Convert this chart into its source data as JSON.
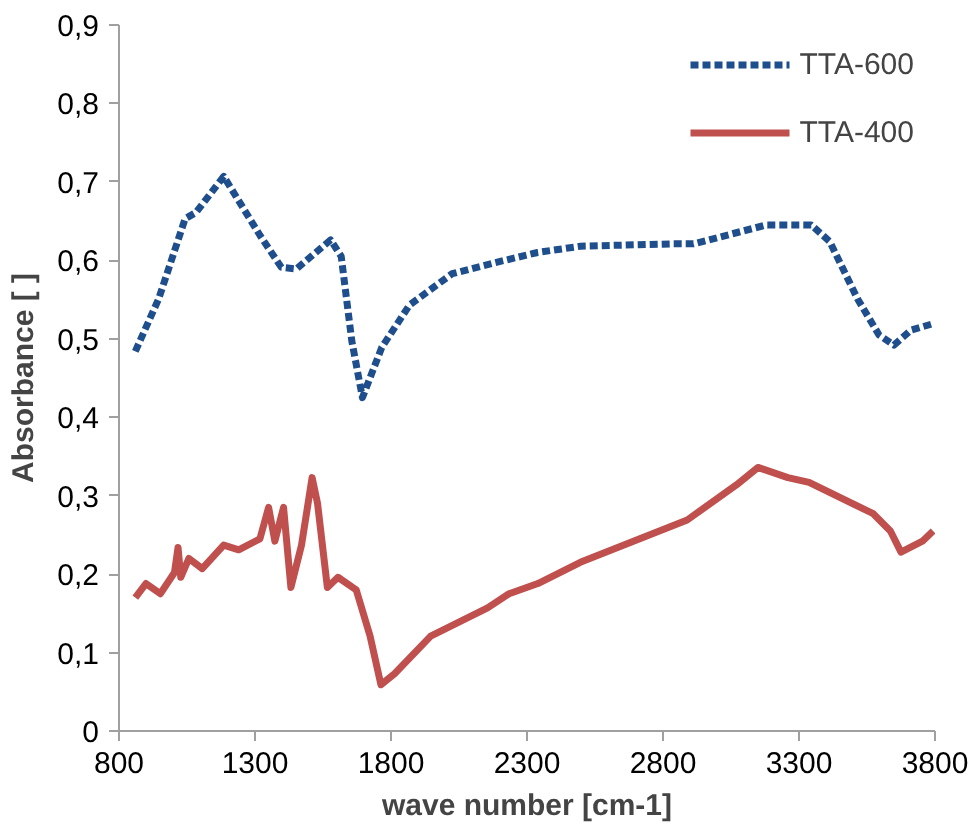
{
  "chart_data": {
    "type": "line",
    "xlabel": "wave number [cm-1]",
    "ylabel": "Absorbance [ ]",
    "xlim": [
      800,
      3800
    ],
    "xticks": [
      800,
      1300,
      1800,
      2300,
      2800,
      3300,
      3800
    ],
    "ylim": [
      0,
      0.9
    ],
    "yticks": [
      {
        "value": 0,
        "label": "0"
      },
      {
        "value": 0.1,
        "label": "0,1"
      },
      {
        "value": 0.2,
        "label": "0,2"
      },
      {
        "value": 0.3,
        "label": "0,3"
      },
      {
        "value": 0.4,
        "label": "0,4"
      },
      {
        "value": 0.5,
        "label": "0,5"
      },
      {
        "value": 0.6,
        "label": "0,6"
      },
      {
        "value": 0.7,
        "label": "0,7"
      },
      {
        "value": 0.8,
        "label": "0,8"
      },
      {
        "value": 0.9,
        "label": "0,9"
      }
    ],
    "grid": false,
    "legend": "top right",
    "marker": "none",
    "series": [
      {
        "name": "TTA-600",
        "color": "#1f4e8c",
        "line_style": "dashed",
        "x": [
          860,
          946,
          1043,
          1083,
          1185,
          1318,
          1397,
          1452,
          1578,
          1617,
          1656,
          1695,
          1766,
          1868,
          2025,
          2182,
          2339,
          2496,
          2834,
          2912,
          3179,
          3345,
          3413,
          3515,
          3594,
          3649,
          3712,
          3790
        ],
        "values": [
          0.484,
          0.551,
          0.653,
          0.661,
          0.707,
          0.632,
          0.591,
          0.589,
          0.626,
          0.605,
          0.497,
          0.425,
          0.489,
          0.543,
          0.583,
          0.597,
          0.61,
          0.618,
          0.621,
          0.621,
          0.645,
          0.645,
          0.624,
          0.551,
          0.505,
          0.492,
          0.511,
          0.519
        ]
      },
      {
        "name": "TTA-400",
        "color": "#c0504d",
        "line_style": "solid",
        "x": [
          860,
          899,
          952,
          1004,
          1017,
          1027,
          1057,
          1106,
          1185,
          1240,
          1318,
          1350,
          1373,
          1405,
          1432,
          1471,
          1510,
          1530,
          1566,
          1605,
          1672,
          1723,
          1763,
          1813,
          1946,
          2155,
          2234,
          2340,
          2496,
          2889,
          3071,
          3149,
          3259,
          3337,
          3573,
          3636,
          3675,
          3754,
          3793
        ],
        "values": [
          0.17,
          0.188,
          0.175,
          0.202,
          0.234,
          0.196,
          0.22,
          0.207,
          0.237,
          0.231,
          0.245,
          0.285,
          0.242,
          0.285,
          0.183,
          0.237,
          0.323,
          0.29,
          0.183,
          0.196,
          0.18,
          0.121,
          0.059,
          0.073,
          0.121,
          0.157,
          0.175,
          0.188,
          0.215,
          0.269,
          0.314,
          0.336,
          0.323,
          0.317,
          0.277,
          0.255,
          0.228,
          0.242,
          0.255
        ]
      }
    ]
  }
}
